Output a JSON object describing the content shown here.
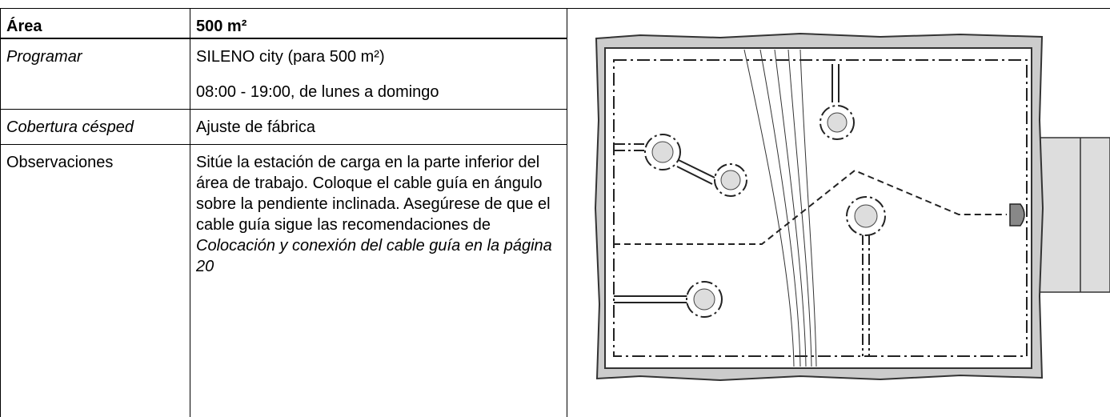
{
  "table": {
    "rows": [
      [
        "Área",
        "500 m²"
      ],
      [
        "Programar",
        "SILENO city (para 500 m²)",
        "08:00 - 19:00, de lunes a domingo"
      ],
      [
        "Cobertura césped",
        "Ajuste de fábrica"
      ],
      [
        "Observaciones",
        {
          "text": "Sitúe la estación de carga en la parte inferior del área de trabajo. Coloque el cable guía en ángulo sobre la pendiente inclinada. Asegúrese de que el cable guía sigue las recomendaciones de ",
          "link": "Colocación y conexión del cable guía en la página 20"
        }
      ]
    ]
  }
}
